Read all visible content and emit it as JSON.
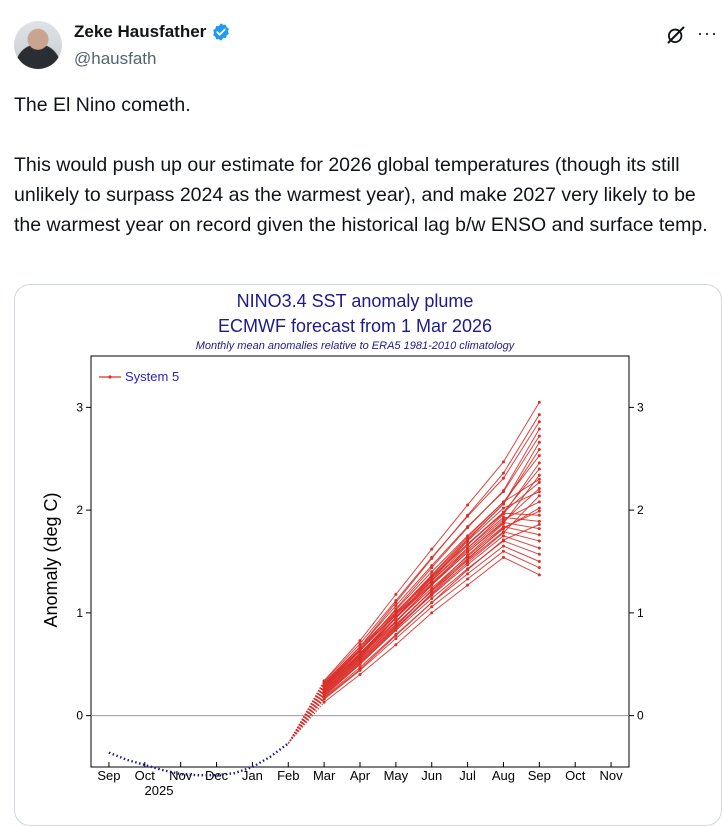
{
  "author": {
    "name": "Zeke Hausfather",
    "handle": "@hausfath",
    "verified": true
  },
  "icons": {
    "more": "more-icon",
    "grok": "grok-icon",
    "verified": "verified-badge-icon"
  },
  "tweet": {
    "text": "The El Nino cometh.\n\nThis would push up our estimate for 2026 global temperatures (though its still unlikely to surpass 2024 as the warmest year), and make 2027 very likely to be the warmest year on record given the historical lag b/w ENSO and surface temp."
  },
  "colors": {
    "plume": "#d9302a",
    "observed": "#1f1a8a",
    "legend_text": "#2a22c8",
    "title": "#1f1a8a"
  },
  "chart_data": {
    "type": "line",
    "title": "NINO3.4 SST anomaly plume",
    "subtitle": "ECMWF forecast from 1 Mar 2026",
    "note": "Monthly mean anomalies relative to ERA5 1981-2010 climatology",
    "ylabel": "Anomaly (deg C)",
    "xlabel": "",
    "ylim": [
      -0.5,
      3.5
    ],
    "yticks": [
      0,
      1,
      2,
      3
    ],
    "categories": [
      "Sep",
      "Oct",
      "Nov",
      "Dec",
      "Jan",
      "Feb",
      "Mar",
      "Apr",
      "May",
      "Jun",
      "Jul",
      "Aug",
      "Sep",
      "Oct",
      "Nov"
    ],
    "year_label": "2025",
    "legend": "System 5",
    "observed": {
      "x": [
        0.0,
        0.5,
        1.0,
        1.5,
        2.0,
        2.5,
        3.0,
        3.5,
        4.0,
        4.5,
        5.0
      ],
      "y": [
        -0.36,
        -0.43,
        -0.48,
        -0.53,
        -0.57,
        -0.58,
        -0.58,
        -0.56,
        -0.5,
        -0.4,
        -0.27
      ]
    },
    "ensemble": {
      "name": "System 5",
      "months": [
        "Mar",
        "Apr",
        "May",
        "Jun",
        "Jul",
        "Aug",
        "Sep"
      ],
      "members": [
        [
          0.13,
          0.4,
          0.69,
          1.0,
          1.27,
          1.54,
          1.37
        ],
        [
          0.16,
          0.44,
          0.75,
          1.06,
          1.33,
          1.6,
          1.44
        ],
        [
          0.18,
          0.47,
          0.79,
          1.1,
          1.38,
          1.65,
          1.5
        ],
        [
          0.2,
          0.5,
          0.83,
          1.14,
          1.43,
          1.7,
          1.57
        ],
        [
          0.22,
          0.53,
          0.86,
          1.17,
          1.47,
          1.75,
          1.63
        ],
        [
          0.24,
          0.56,
          0.89,
          1.21,
          1.51,
          1.79,
          1.7
        ],
        [
          0.26,
          0.59,
          0.92,
          1.24,
          1.55,
          1.84,
          1.76
        ],
        [
          0.28,
          0.61,
          0.95,
          1.28,
          1.59,
          1.88,
          1.82
        ],
        [
          0.3,
          0.64,
          0.98,
          1.31,
          1.63,
          1.93,
          1.89
        ],
        [
          0.32,
          0.67,
          1.01,
          1.35,
          1.67,
          1.97,
          1.95
        ],
        [
          0.22,
          0.54,
          0.88,
          1.22,
          1.53,
          1.82,
          2.02
        ],
        [
          0.27,
          0.6,
          0.95,
          1.29,
          1.61,
          1.91,
          2.08
        ],
        [
          0.19,
          0.5,
          0.84,
          1.18,
          1.49,
          1.78,
          2.14
        ],
        [
          0.25,
          0.57,
          0.92,
          1.27,
          1.59,
          1.89,
          2.21
        ],
        [
          0.29,
          0.63,
          0.99,
          1.34,
          1.67,
          1.98,
          2.27
        ],
        [
          0.21,
          0.52,
          0.87,
          1.22,
          1.56,
          1.87,
          2.34
        ],
        [
          0.26,
          0.59,
          0.95,
          1.31,
          1.66,
          1.98,
          2.4
        ],
        [
          0.23,
          0.55,
          0.91,
          1.27,
          1.63,
          1.96,
          2.46
        ],
        [
          0.3,
          0.65,
          1.03,
          1.4,
          1.75,
          2.08,
          2.53
        ],
        [
          0.27,
          0.6,
          0.98,
          1.36,
          1.72,
          2.06,
          2.59
        ],
        [
          0.24,
          0.57,
          0.95,
          1.34,
          1.71,
          2.06,
          2.66
        ],
        [
          0.31,
          0.67,
          1.07,
          1.46,
          1.84,
          2.18,
          2.72
        ],
        [
          0.28,
          0.63,
          1.04,
          1.44,
          1.83,
          2.19,
          2.79
        ],
        [
          0.33,
          0.7,
          1.12,
          1.54,
          1.94,
          2.31,
          2.86
        ],
        [
          0.3,
          0.67,
          1.1,
          1.53,
          1.95,
          2.36,
          2.93
        ],
        [
          0.34,
          0.73,
          1.18,
          1.62,
          2.05,
          2.47,
          3.05
        ],
        [
          0.24,
          0.58,
          0.96,
          1.32,
          1.7,
          2.02,
          2.18
        ],
        [
          0.2,
          0.51,
          0.85,
          1.19,
          1.52,
          1.83,
          1.99
        ],
        [
          0.29,
          0.64,
          1.0,
          1.37,
          1.74,
          2.08,
          2.3
        ],
        [
          0.17,
          0.45,
          0.78,
          1.1,
          1.42,
          1.71,
          1.86
        ]
      ]
    }
  }
}
